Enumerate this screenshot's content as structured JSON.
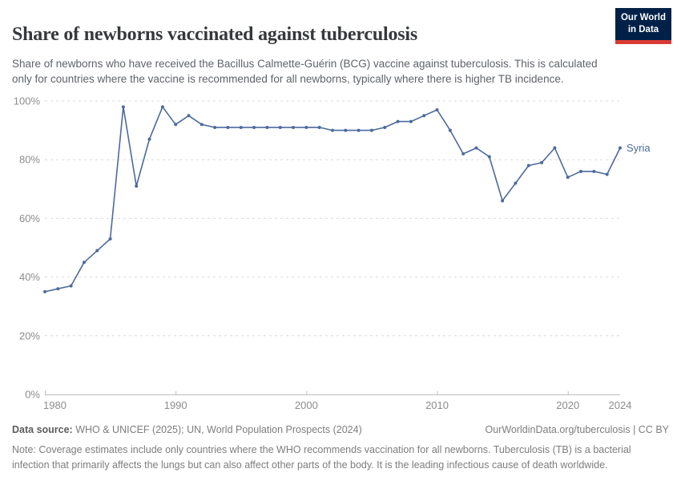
{
  "header": {
    "title": "Share of newborns vaccinated against tuberculosis",
    "subtitle": "Share of newborns who have received the Bacillus Calmette-Guérin (BCG) vaccine against tuberculosis. This is calculated only for countries where the vaccine is recommended for all newborns, typically where there is higher TB incidence.",
    "logo": {
      "line1": "Our World",
      "line2": "in Data",
      "bg_color": "#002147",
      "stripe_color": "#d93a34"
    }
  },
  "chart_data": {
    "type": "line",
    "title": "Share of newborns vaccinated against tuberculosis",
    "entity": "Syria",
    "x": [
      1980,
      1981,
      1982,
      1983,
      1984,
      1985,
      1986,
      1987,
      1988,
      1989,
      1990,
      1991,
      1992,
      1993,
      1994,
      1995,
      1996,
      1997,
      1998,
      1999,
      2000,
      2001,
      2002,
      2003,
      2004,
      2005,
      2006,
      2007,
      2008,
      2009,
      2010,
      2011,
      2012,
      2013,
      2014,
      2015,
      2016,
      2017,
      2018,
      2019,
      2020,
      2021,
      2022,
      2023,
      2024
    ],
    "series": [
      {
        "name": "Syria",
        "color": "#4c6a9c",
        "values": [
          35,
          36,
          37,
          45,
          49,
          53,
          98,
          71,
          87,
          98,
          92,
          95,
          92,
          91,
          91,
          91,
          91,
          91,
          91,
          91,
          91,
          91,
          90,
          90,
          90,
          90,
          91,
          93,
          93,
          95,
          97,
          90,
          82,
          84,
          81,
          66,
          72,
          78,
          79,
          84,
          74,
          76,
          76,
          75,
          84
        ]
      }
    ],
    "ylim": [
      0,
      100
    ],
    "ytick_values": [
      0,
      20,
      40,
      60,
      80,
      100
    ],
    "ytick_labels": [
      "0%",
      "20%",
      "40%",
      "60%",
      "80%",
      "100%"
    ],
    "xtick_values": [
      1980,
      1990,
      2000,
      2010,
      2020,
      2024
    ],
    "grid": "horizontal-dashed",
    "legend": "end-of-line-label",
    "end_label": "Syria"
  },
  "footer": {
    "datasource_label": "Data source:",
    "datasource_text": " WHO & UNICEF (2025); UN, World Population Prospects (2024)",
    "link": "OurWorldinData.org/tuberculosis | CC BY",
    "note_label": "Note:",
    "note_text": " Coverage estimates include only countries where the WHO recommends vaccination for all newborns. Tuberculosis (TB) is a bacterial infection that primarily affects the lungs but can also affect other parts of the body. It is the leading infectious cause of death worldwide."
  }
}
